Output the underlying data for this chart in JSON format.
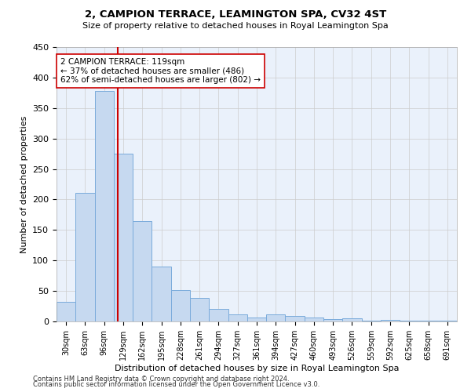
{
  "title": "2, CAMPION TERRACE, LEAMINGTON SPA, CV32 4ST",
  "subtitle": "Size of property relative to detached houses in Royal Leamington Spa",
  "xlabel": "Distribution of detached houses by size in Royal Leamington Spa",
  "ylabel": "Number of detached properties",
  "footer_line1": "Contains HM Land Registry data © Crown copyright and database right 2024.",
  "footer_line2": "Contains public sector information licensed under the Open Government Licence v3.0.",
  "bin_labels": [
    "30sqm",
    "63sqm",
    "96sqm",
    "129sqm",
    "162sqm",
    "195sqm",
    "228sqm",
    "261sqm",
    "294sqm",
    "327sqm",
    "361sqm",
    "394sqm",
    "427sqm",
    "460sqm",
    "493sqm",
    "526sqm",
    "559sqm",
    "592sqm",
    "625sqm",
    "658sqm",
    "691sqm"
  ],
  "bar_values": [
    32,
    211,
    378,
    275,
    165,
    90,
    52,
    38,
    20,
    11,
    6,
    11,
    9,
    6,
    4,
    5,
    1,
    2,
    1,
    1,
    1
  ],
  "bar_color": "#c6d9f0",
  "bar_edge_color": "#7aabdb",
  "property_line_bin": 2.7,
  "annotation_text": "2 CAMPION TERRACE: 119sqm\n← 37% of detached houses are smaller (486)\n62% of semi-detached houses are larger (802) →",
  "annotation_box_color": "#ffffff",
  "annotation_box_edge": "#cc0000",
  "vline_color": "#cc0000",
  "ylim": [
    0,
    450
  ],
  "yticks": [
    0,
    50,
    100,
    150,
    200,
    250,
    300,
    350,
    400,
    450
  ],
  "grid_color": "#cccccc",
  "background_color": "#ffffff",
  "plot_bg_color": "#eaf1fb"
}
